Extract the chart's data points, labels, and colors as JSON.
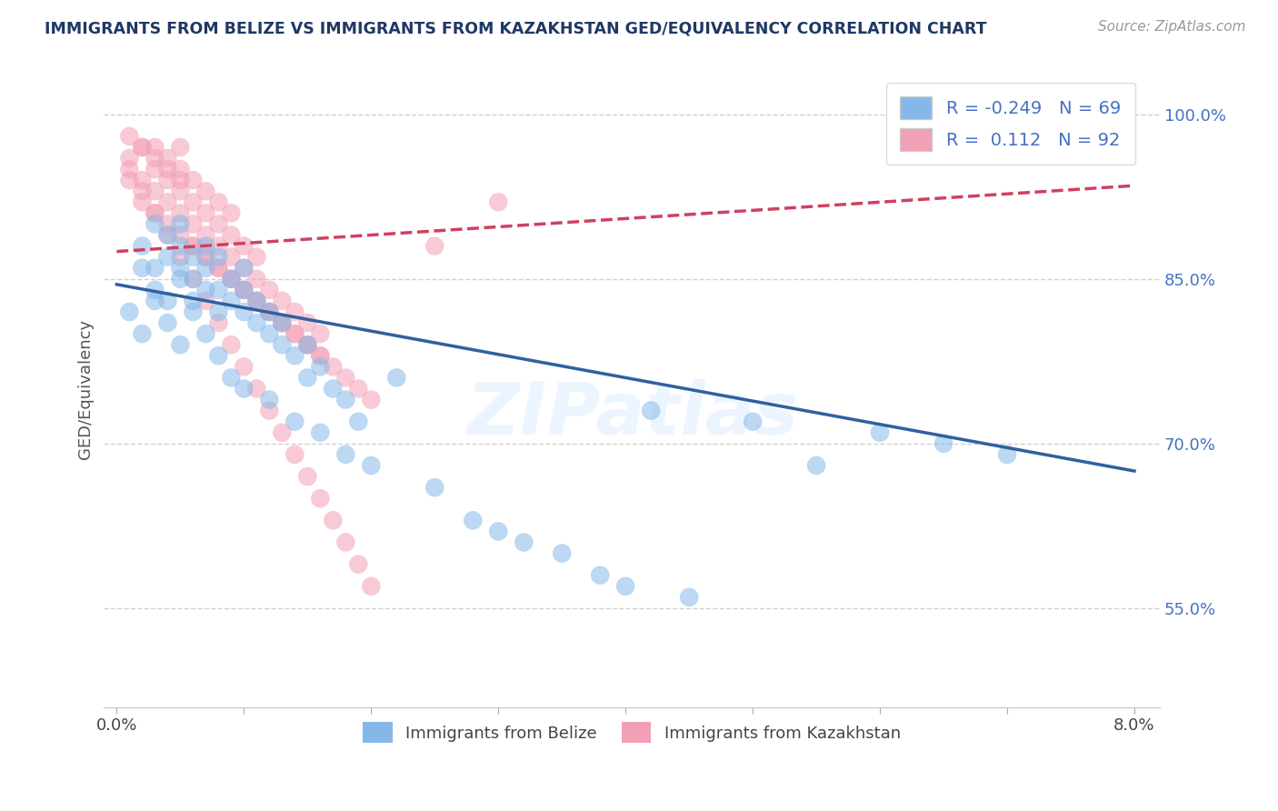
{
  "title": "IMMIGRANTS FROM BELIZE VS IMMIGRANTS FROM KAZAKHSTAN GED/EQUIVALENCY CORRELATION CHART",
  "source": "Source: ZipAtlas.com",
  "xlabel_belize": "Immigrants from Belize",
  "xlabel_kazakhstan": "Immigrants from Kazakhstan",
  "ylabel": "GED/Equivalency",
  "xlim": [
    -0.001,
    0.082
  ],
  "ylim": [
    0.46,
    1.04
  ],
  "xticks": [
    0.0,
    0.01,
    0.02,
    0.03,
    0.04,
    0.05,
    0.06,
    0.07,
    0.08
  ],
  "yticks_right": [
    0.55,
    0.7,
    0.85,
    1.0
  ],
  "yticklabels_right": [
    "55.0%",
    "70.0%",
    "85.0%",
    "100.0%"
  ],
  "color_belize": "#85B8E8",
  "color_kazakhstan": "#F2A0B5",
  "line_color_belize": "#3060A0",
  "line_color_kazakhstan": "#D04060",
  "R_belize": -0.249,
  "N_belize": 69,
  "R_kazakhstan": 0.112,
  "N_kazakhstan": 92,
  "belize_x": [
    0.001,
    0.002,
    0.002,
    0.003,
    0.003,
    0.003,
    0.004,
    0.004,
    0.004,
    0.005,
    0.005,
    0.005,
    0.005,
    0.006,
    0.006,
    0.006,
    0.007,
    0.007,
    0.007,
    0.008,
    0.008,
    0.008,
    0.009,
    0.009,
    0.01,
    0.01,
    0.01,
    0.011,
    0.011,
    0.012,
    0.012,
    0.013,
    0.013,
    0.014,
    0.015,
    0.015,
    0.016,
    0.017,
    0.018,
    0.019,
    0.002,
    0.003,
    0.004,
    0.005,
    0.006,
    0.007,
    0.008,
    0.009,
    0.01,
    0.012,
    0.014,
    0.016,
    0.018,
    0.02,
    0.022,
    0.025,
    0.028,
    0.03,
    0.032,
    0.035,
    0.038,
    0.04,
    0.042,
    0.045,
    0.05,
    0.055,
    0.06,
    0.065,
    0.07
  ],
  "belize_y": [
    0.82,
    0.86,
    0.88,
    0.84,
    0.86,
    0.9,
    0.83,
    0.87,
    0.89,
    0.85,
    0.86,
    0.88,
    0.9,
    0.83,
    0.85,
    0.87,
    0.84,
    0.86,
    0.88,
    0.82,
    0.84,
    0.87,
    0.83,
    0.85,
    0.82,
    0.84,
    0.86,
    0.81,
    0.83,
    0.8,
    0.82,
    0.79,
    0.81,
    0.78,
    0.76,
    0.79,
    0.77,
    0.75,
    0.74,
    0.72,
    0.8,
    0.83,
    0.81,
    0.79,
    0.82,
    0.8,
    0.78,
    0.76,
    0.75,
    0.74,
    0.72,
    0.71,
    0.69,
    0.68,
    0.76,
    0.66,
    0.63,
    0.62,
    0.61,
    0.6,
    0.58,
    0.57,
    0.73,
    0.56,
    0.72,
    0.68,
    0.71,
    0.7,
    0.69
  ],
  "kazakhstan_x": [
    0.001,
    0.001,
    0.002,
    0.002,
    0.002,
    0.003,
    0.003,
    0.003,
    0.003,
    0.004,
    0.004,
    0.004,
    0.004,
    0.005,
    0.005,
    0.005,
    0.005,
    0.005,
    0.006,
    0.006,
    0.006,
    0.006,
    0.007,
    0.007,
    0.007,
    0.007,
    0.008,
    0.008,
    0.008,
    0.008,
    0.009,
    0.009,
    0.009,
    0.009,
    0.01,
    0.01,
    0.01,
    0.011,
    0.011,
    0.011,
    0.012,
    0.012,
    0.013,
    0.013,
    0.014,
    0.014,
    0.015,
    0.015,
    0.016,
    0.016,
    0.001,
    0.002,
    0.003,
    0.004,
    0.005,
    0.006,
    0.007,
    0.008,
    0.009,
    0.01,
    0.011,
    0.012,
    0.013,
    0.014,
    0.015,
    0.016,
    0.017,
    0.018,
    0.019,
    0.02,
    0.001,
    0.002,
    0.003,
    0.004,
    0.005,
    0.006,
    0.007,
    0.008,
    0.009,
    0.01,
    0.011,
    0.012,
    0.013,
    0.014,
    0.015,
    0.016,
    0.017,
    0.018,
    0.019,
    0.02,
    0.025,
    0.03
  ],
  "kazakhstan_y": [
    0.94,
    0.96,
    0.92,
    0.94,
    0.97,
    0.91,
    0.93,
    0.95,
    0.97,
    0.9,
    0.92,
    0.94,
    0.96,
    0.89,
    0.91,
    0.93,
    0.95,
    0.97,
    0.88,
    0.9,
    0.92,
    0.94,
    0.87,
    0.89,
    0.91,
    0.93,
    0.86,
    0.88,
    0.9,
    0.92,
    0.85,
    0.87,
    0.89,
    0.91,
    0.84,
    0.86,
    0.88,
    0.83,
    0.85,
    0.87,
    0.82,
    0.84,
    0.81,
    0.83,
    0.8,
    0.82,
    0.79,
    0.81,
    0.78,
    0.8,
    0.98,
    0.97,
    0.96,
    0.95,
    0.94,
    0.88,
    0.87,
    0.86,
    0.85,
    0.84,
    0.83,
    0.82,
    0.81,
    0.8,
    0.79,
    0.78,
    0.77,
    0.76,
    0.75,
    0.74,
    0.95,
    0.93,
    0.91,
    0.89,
    0.87,
    0.85,
    0.83,
    0.81,
    0.79,
    0.77,
    0.75,
    0.73,
    0.71,
    0.69,
    0.67,
    0.65,
    0.63,
    0.61,
    0.59,
    0.57,
    0.88,
    0.92
  ],
  "belize_trend_x": [
    0.0,
    0.08
  ],
  "belize_trend_y": [
    0.845,
    0.675
  ],
  "kazakhstan_trend_x": [
    0.0,
    0.08
  ],
  "kazakhstan_trend_y": [
    0.875,
    0.935
  ],
  "watermark": "ZIPatlas",
  "background_color": "#FFFFFF",
  "grid_color": "#CCCCCC"
}
